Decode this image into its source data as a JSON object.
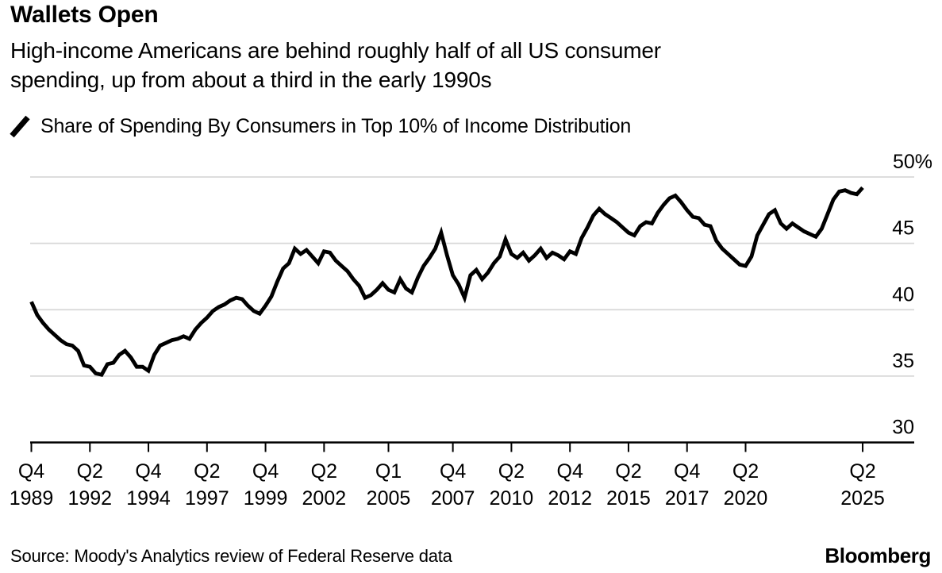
{
  "header": {
    "title": "Wallets Open",
    "subtitle_lines": [
      "High-income Americans are behind roughly half of all US consumer",
      "spending, up from about a third in the early 1990s"
    ]
  },
  "legend": {
    "series_label": "Share of Spending By Consumers in Top 10% of Income Distribution"
  },
  "chart_data": {
    "type": "line",
    "title": "Wallets Open",
    "ylim": [
      30,
      50
    ],
    "grid": true,
    "legend_position": "top-left",
    "gridline_color": "#d8d8d8",
    "axis_color": "#000000",
    "yticks": [
      {
        "value": 30,
        "label": "30"
      },
      {
        "value": 35,
        "label": "35"
      },
      {
        "value": 40,
        "label": "40"
      },
      {
        "value": 45,
        "label": "45"
      },
      {
        "value": 50,
        "label": "50%"
      }
    ],
    "xticks": [
      {
        "quarter": "Q4",
        "year": "1989"
      },
      {
        "quarter": "Q2",
        "year": "1992"
      },
      {
        "quarter": "Q4",
        "year": "1994"
      },
      {
        "quarter": "Q2",
        "year": "1997"
      },
      {
        "quarter": "Q4",
        "year": "1999"
      },
      {
        "quarter": "Q2",
        "year": "2002"
      },
      {
        "quarter": "Q1",
        "year": "2005"
      },
      {
        "quarter": "Q4",
        "year": "2007"
      },
      {
        "quarter": "Q2",
        "year": "2010"
      },
      {
        "quarter": "Q4",
        "year": "2012"
      },
      {
        "quarter": "Q2",
        "year": "2015"
      },
      {
        "quarter": "Q4",
        "year": "2017"
      },
      {
        "quarter": "Q2",
        "year": "2020"
      },
      {
        "quarter": "Q2",
        "year": "2025"
      }
    ],
    "series": [
      {
        "name": "Share of Spending By Consumers in Top 10% of Income Distribution",
        "color": "#000000",
        "unit": "percent",
        "frequency": "quarterly",
        "start": "Q4 1989",
        "end": "Q2 2025",
        "values": [
          40.6,
          39.6,
          39.0,
          38.5,
          38.1,
          37.7,
          37.4,
          37.3,
          36.9,
          35.8,
          35.7,
          35.2,
          35.1,
          35.9,
          36.0,
          36.6,
          36.9,
          36.4,
          35.7,
          35.7,
          35.4,
          36.6,
          37.3,
          37.5,
          37.7,
          37.8,
          38.0,
          37.8,
          38.5,
          39.0,
          39.4,
          39.9,
          40.2,
          40.4,
          40.7,
          40.9,
          40.8,
          40.3,
          39.9,
          39.7,
          40.3,
          41.0,
          42.1,
          43.1,
          43.5,
          44.6,
          44.2,
          44.5,
          44.0,
          43.5,
          44.4,
          44.3,
          43.7,
          43.3,
          42.9,
          42.3,
          41.8,
          40.9,
          41.1,
          41.5,
          42.0,
          41.5,
          41.3,
          42.3,
          41.6,
          41.3,
          42.4,
          43.3,
          43.9,
          44.6,
          45.8,
          44.1,
          42.6,
          41.9,
          40.9,
          42.6,
          43.0,
          42.3,
          42.8,
          43.5,
          44.0,
          45.3,
          44.2,
          43.9,
          44.3,
          43.7,
          44.1,
          44.6,
          43.9,
          44.3,
          44.1,
          43.8,
          44.4,
          44.2,
          45.4,
          46.2,
          47.1,
          47.6,
          47.2,
          46.9,
          46.6,
          46.2,
          45.8,
          45.6,
          46.3,
          46.6,
          46.5,
          47.3,
          47.9,
          48.4,
          48.6,
          48.1,
          47.5,
          47.0,
          46.9,
          46.4,
          46.3,
          45.2,
          44.6,
          44.2,
          43.8,
          43.4,
          43.3,
          44.0,
          45.6,
          46.4,
          47.2,
          47.5,
          46.5,
          46.1,
          46.5,
          46.2,
          45.9,
          45.7,
          45.5,
          46.1,
          47.2,
          48.3,
          48.9,
          49.0,
          48.8,
          48.7,
          49.2
        ]
      }
    ]
  },
  "footer": {
    "source": "Source: Moody's Analytics review of Federal Reserve data",
    "brand": "Bloomberg"
  }
}
